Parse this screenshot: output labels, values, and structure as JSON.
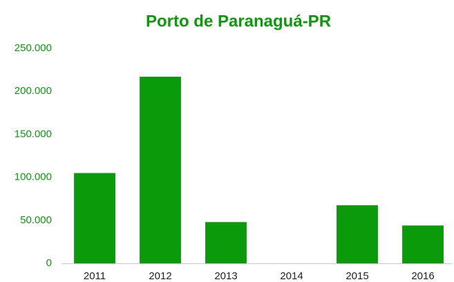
{
  "chart_data": {
    "type": "bar",
    "title": "Porto de Paranaguá-PR",
    "categories": [
      "2011",
      "2012",
      "2013",
      "2014",
      "2015",
      "2016"
    ],
    "values": [
      105000,
      217000,
      48000,
      0,
      67500,
      44000
    ],
    "color": "#0a9a0a",
    "ylim": [
      0,
      250000
    ],
    "yticks": [
      0,
      {
        "value": 50000,
        "label": "50.000"
      },
      {
        "value": 100000,
        "label": "100.000"
      },
      {
        "value": 150000,
        "label": "150.000"
      },
      {
        "value": 200000,
        "label": "200.000"
      },
      {
        "value": 250000,
        "label": "250.000"
      }
    ],
    "grid": false
  }
}
